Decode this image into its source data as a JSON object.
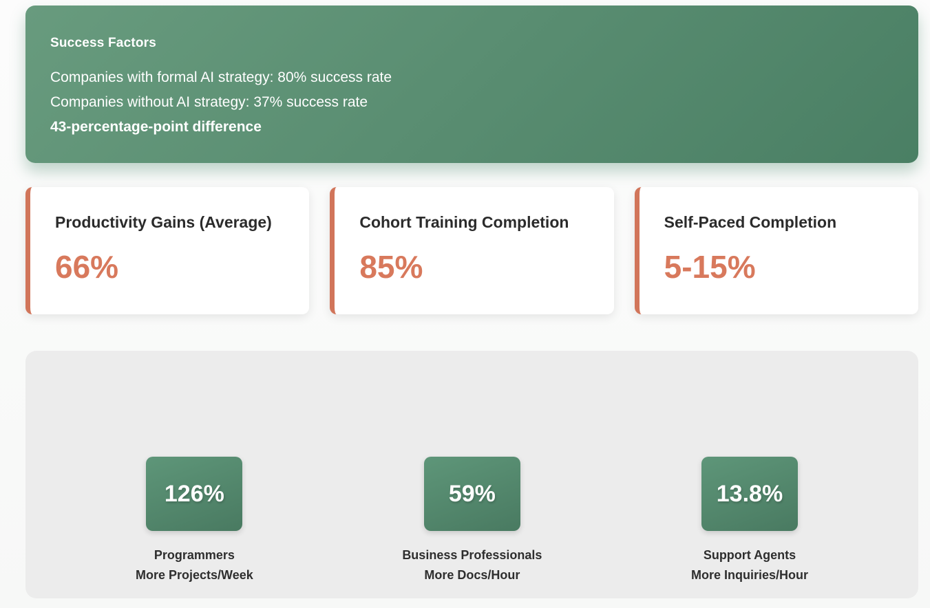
{
  "banner": {
    "title": "Success Factors",
    "lines": [
      {
        "text": "Companies with formal AI strategy: 80% success rate"
      },
      {
        "text": "Companies without AI strategy: 37% success rate"
      },
      {
        "text": "43-percentage-point difference"
      }
    ]
  },
  "stat_cards": [
    {
      "title": "Productivity Gains (Average)",
      "value": "66%"
    },
    {
      "title": "Cohort Training Completion",
      "value": "85%"
    },
    {
      "title": "Self-Paced Completion",
      "value": "5-15%"
    }
  ],
  "productivity_tiles": [
    {
      "value": "126%",
      "label_line1": "Programmers",
      "label_line2": "More Projects/Week"
    },
    {
      "value": "59%",
      "label_line1": "Business Professionals",
      "label_line2": "More Docs/Hour"
    },
    {
      "value": "13.8%",
      "label_line1": "Support Agents",
      "label_line2": "More Inquiries/Hour"
    }
  ],
  "colors": {
    "banner_gradient_start": "#689b7e",
    "banner_gradient_end": "#4a7f64",
    "accent_orange": "#d8795c",
    "card_border_orange": "#d1755a",
    "tile_gradient_start": "#5e9679",
    "tile_gradient_end": "#497a61",
    "panel_gray": "#ececec",
    "page_background": "#fafafa"
  }
}
